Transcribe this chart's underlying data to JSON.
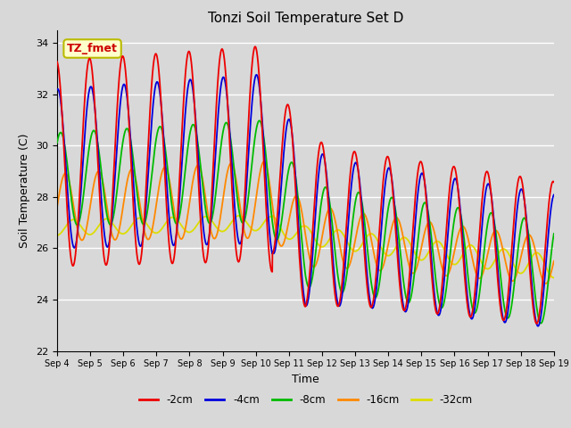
{
  "title": "Tonzi Soil Temperature Set D",
  "xlabel": "Time",
  "ylabel": "Soil Temperature (C)",
  "ylim": [
    22,
    34.5
  ],
  "xlim": [
    0,
    15
  ],
  "background_color": "#d8d8d8",
  "plot_bg_color": "#d8d8d8",
  "annotation_text": "TZ_fmet",
  "annotation_bg": "#ffffcc",
  "annotation_border": "#bbbb00",
  "colors": {
    "-2cm": "#ee0000",
    "-4cm": "#0000dd",
    "-8cm": "#00bb00",
    "-16cm": "#ff8800",
    "-32cm": "#dddd00"
  },
  "legend_labels": [
    "-2cm",
    "-4cm",
    "-8cm",
    "-16cm",
    "-32cm"
  ],
  "xtick_labels": [
    "Sep 4",
    "Sep 5",
    "Sep 6",
    "Sep 7",
    "Sep 8",
    "Sep 9",
    "Sep 10",
    "Sep 11",
    "Sep 12",
    "Sep 13",
    "Sep 14",
    "Sep 15",
    "Sep 16",
    "Sep 17",
    "Sep 18",
    "Sep 19"
  ],
  "ytick_values": [
    22,
    24,
    26,
    28,
    30,
    32,
    34
  ],
  "grid_color": "#ffffff",
  "linewidth": 1.3
}
